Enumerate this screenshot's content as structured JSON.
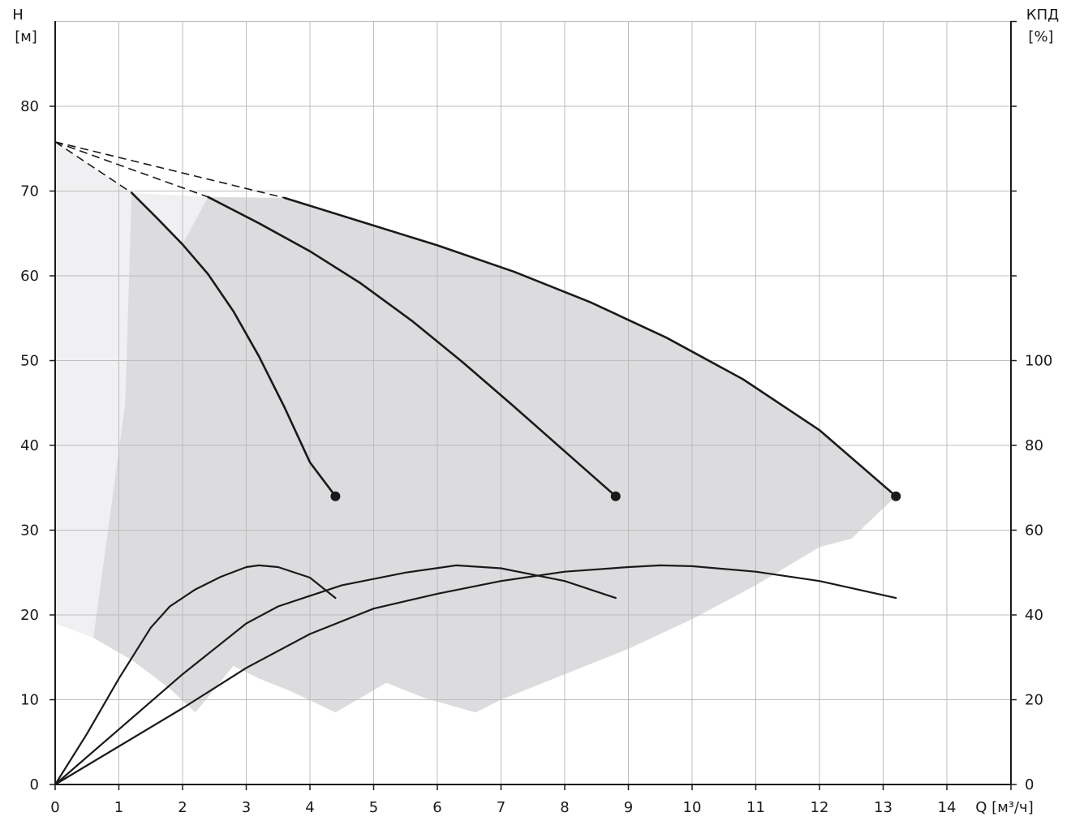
{
  "chart_data": {
    "type": "line",
    "x_axis": {
      "label": "Q [м³/ч]",
      "range": [
        0,
        15
      ],
      "ticks": [
        "0",
        "1",
        "2",
        "3",
        "4",
        "5",
        "6",
        "7",
        "8",
        "9",
        "10",
        "11",
        "12",
        "13",
        "14"
      ]
    },
    "y_axis_left": {
      "label_line1": "H",
      "label_line2": "[м]",
      "range": [
        0,
        90
      ],
      "ticks": [
        "0",
        "10",
        "20",
        "30",
        "40",
        "50",
        "60",
        "70",
        "80"
      ]
    },
    "y_axis_right": {
      "label_line1": "КПД",
      "label_line2": "[%]",
      "range": [
        0,
        180
      ],
      "ticks": [
        "0",
        "20",
        "40",
        "60",
        "80",
        "100"
      ]
    },
    "grid": true,
    "shutoff_head": 75.8,
    "head_curves": [
      {
        "points": [
          [
            1.2,
            69.8
          ],
          [
            1.6,
            66.8
          ],
          [
            2.0,
            63.7
          ],
          [
            2.4,
            60.2
          ],
          [
            2.8,
            55.8
          ],
          [
            3.2,
            50.5
          ],
          [
            3.6,
            44.5
          ],
          [
            4.0,
            38.0
          ],
          [
            4.4,
            34.0
          ]
        ],
        "end_marker": [
          4.4,
          34.0
        ]
      },
      {
        "points": [
          [
            2.4,
            69.3
          ],
          [
            3.2,
            66.2
          ],
          [
            4.0,
            62.9
          ],
          [
            4.8,
            59.1
          ],
          [
            5.6,
            54.7
          ],
          [
            6.4,
            49.8
          ],
          [
            7.2,
            44.6
          ],
          [
            8.0,
            39.3
          ],
          [
            8.8,
            34.0
          ]
        ],
        "end_marker": [
          8.8,
          34.0
        ]
      },
      {
        "points": [
          [
            3.6,
            69.2
          ],
          [
            4.8,
            66.4
          ],
          [
            6.0,
            63.6
          ],
          [
            7.2,
            60.5
          ],
          [
            8.4,
            56.9
          ],
          [
            9.6,
            52.7
          ],
          [
            10.8,
            47.8
          ],
          [
            12.0,
            41.8
          ],
          [
            13.2,
            34.0
          ]
        ],
        "end_marker": [
          13.2,
          34.0
        ]
      }
    ],
    "efficiency_curves": [
      {
        "points": [
          [
            0,
            0
          ],
          [
            0.5,
            12
          ],
          [
            1,
            25
          ],
          [
            1.5,
            37
          ],
          [
            1.8,
            42
          ],
          [
            2.2,
            46
          ],
          [
            2.6,
            49
          ],
          [
            3.0,
            51.3
          ],
          [
            3.2,
            51.7
          ],
          [
            3.5,
            51.3
          ],
          [
            4.0,
            48.8
          ],
          [
            4.4,
            44
          ]
        ]
      },
      {
        "points": [
          [
            0,
            0
          ],
          [
            1,
            13
          ],
          [
            2,
            26
          ],
          [
            3,
            38
          ],
          [
            3.5,
            42
          ],
          [
            4.5,
            47
          ],
          [
            5.5,
            50
          ],
          [
            6.3,
            51.7
          ],
          [
            7.0,
            51
          ],
          [
            8.0,
            48
          ],
          [
            8.8,
            44
          ]
        ]
      },
      {
        "points": [
          [
            0,
            0
          ],
          [
            1,
            9
          ],
          [
            2,
            18
          ],
          [
            3,
            27.5
          ],
          [
            4,
            35.5
          ],
          [
            5,
            41.5
          ],
          [
            6,
            45
          ],
          [
            7,
            48
          ],
          [
            8,
            50.2
          ],
          [
            9,
            51.3
          ],
          [
            9.5,
            51.7
          ],
          [
            10,
            51.5
          ],
          [
            11,
            50.2
          ],
          [
            12,
            48
          ],
          [
            13.2,
            44
          ]
        ]
      }
    ],
    "shaded_region_light": [
      [
        0,
        75.8
      ],
      [
        1.2,
        69.8
      ],
      [
        2.4,
        69.3
      ],
      [
        3.6,
        69.2
      ],
      [
        3.6,
        69.2
      ],
      [
        1.1,
        33
      ],
      [
        0.6,
        17.3
      ],
      [
        0,
        19
      ]
    ],
    "shaded_region_dark_outline": [
      [
        1.2,
        69.8
      ],
      [
        1.6,
        66.8
      ],
      [
        2.0,
        63.7
      ],
      [
        2.4,
        69.3
      ],
      [
        3.6,
        69.2
      ],
      [
        4.8,
        66.4
      ],
      [
        6.0,
        63.6
      ],
      [
        7.2,
        60.5
      ],
      [
        8.4,
        56.9
      ],
      [
        9.6,
        52.7
      ],
      [
        10.8,
        47.8
      ],
      [
        12.0,
        41.8
      ],
      [
        13.2,
        34.0
      ],
      [
        12.5,
        29
      ],
      [
        12.0,
        28
      ],
      [
        11.0,
        23.5
      ],
      [
        10.0,
        19.5
      ],
      [
        9.0,
        16
      ],
      [
        8.0,
        13
      ],
      [
        7.0,
        10
      ],
      [
        6.6,
        8.5
      ],
      [
        5.8,
        10.2
      ],
      [
        5.2,
        12
      ],
      [
        4.4,
        8.5
      ],
      [
        3.7,
        11
      ],
      [
        3.2,
        12.5
      ],
      [
        2.8,
        14
      ],
      [
        2.2,
        8.5
      ],
      [
        1.8,
        11.3
      ],
      [
        1.2,
        14.7
      ],
      [
        0.6,
        17.3
      ],
      [
        1.1,
        45
      ],
      [
        1.2,
        69.8
      ]
    ],
    "colors": {
      "background": "#ffffff",
      "region_light": "#f0f0f2",
      "region_dark": "#dcdcde",
      "line": "#1a1a1a"
    }
  }
}
